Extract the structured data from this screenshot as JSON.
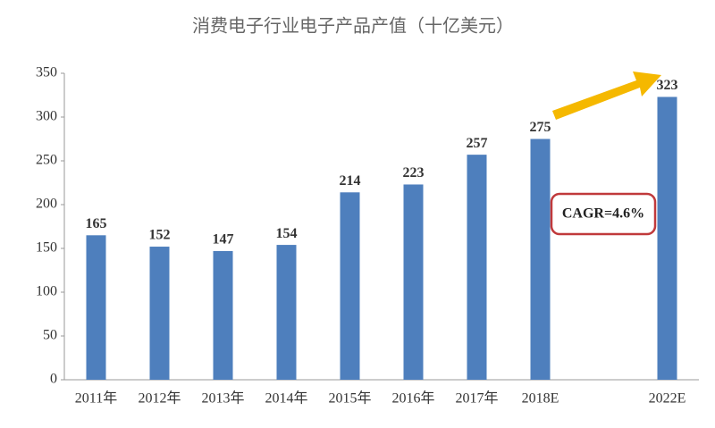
{
  "chart_data": {
    "type": "bar",
    "title": "消费电子行业电子产品产值（十亿美元）",
    "categories": [
      "2011年",
      "2012年",
      "2013年",
      "2014年",
      "2015年",
      "2016年",
      "2017年",
      "2018E",
      null,
      "2022E"
    ],
    "values": [
      165,
      152,
      147,
      154,
      214,
      223,
      257,
      275,
      null,
      323
    ],
    "color": "#4e7fbd",
    "ylim": [
      0,
      350
    ],
    "yticks": [
      0,
      50,
      100,
      150,
      200,
      250,
      300,
      350
    ],
    "annotation": "CAGR=4.6%"
  }
}
